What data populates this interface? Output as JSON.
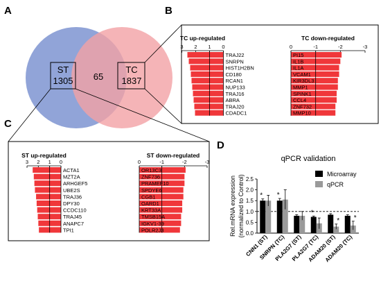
{
  "panels": {
    "A": {
      "letter": "A"
    },
    "B": {
      "letter": "B"
    },
    "C": {
      "letter": "C"
    },
    "D": {
      "letter": "D"
    }
  },
  "venn": {
    "st": {
      "label": "ST",
      "count": "1305",
      "color": "#8b9fd6"
    },
    "tc": {
      "label": "TC",
      "count": "1837",
      "color": "#f3a1a5"
    },
    "overlap": {
      "count": "65"
    }
  },
  "colors": {
    "up": "#f0373a",
    "down": "#29913a",
    "microarray": "#000000",
    "qpcr": "#9a9a9a"
  },
  "chart_data": [
    {
      "type": "bar",
      "orientation": "horizontal",
      "title": "TC up-regulated",
      "xlim": [
        3,
        0
      ],
      "xticks": [
        "3",
        "2",
        "1",
        "0"
      ],
      "reference_line": 1,
      "categories": [
        "TRAJ22",
        "SNRPN",
        "HIST1H2BN",
        "CD180",
        "RCAN1",
        "NUP133",
        "TRAJ16",
        "ABRA",
        "TRAJ20",
        "CDADC1"
      ],
      "values": [
        2.6,
        2.5,
        2.4,
        2.35,
        2.3,
        2.25,
        2.2,
        2.15,
        2.1,
        2.05
      ]
    },
    {
      "type": "bar",
      "orientation": "horizontal",
      "title": "TC down-regulated",
      "xlim": [
        0,
        -3
      ],
      "xticks": [
        "0",
        "-1",
        "-2",
        "-3"
      ],
      "reference_line": -1,
      "categories": [
        "PI15",
        "IL1B",
        "IL1A",
        "VCAM1",
        "KIR3DL3",
        "MMP1",
        "SPINK1",
        "CCL4",
        "ZNF732",
        "MMP10"
      ],
      "values": [
        -2.05,
        -2.0,
        -1.95,
        -1.95,
        -1.9,
        -1.9,
        -1.85,
        -1.85,
        -1.8,
        -1.8
      ]
    },
    {
      "type": "bar",
      "orientation": "horizontal",
      "title": "ST up-regulated",
      "xlim": [
        3,
        0
      ],
      "xticks": [
        "3",
        "2",
        "1",
        "0"
      ],
      "reference_line": 1,
      "categories": [
        "ACTA1",
        "MZT2A",
        "ARHGEF5",
        "UBE2S",
        "TRAJ36",
        "DPY30",
        "CCDC110",
        "TRAJ45",
        "ANAPC7",
        "TPI1"
      ],
      "values": [
        2.5,
        2.4,
        2.35,
        2.3,
        2.2,
        2.15,
        2.1,
        2.05,
        2.0,
        1.95
      ]
    },
    {
      "type": "bar",
      "orientation": "horizontal",
      "title": "ST down-regulated",
      "xlim": [
        0,
        -3
      ],
      "xticks": [
        "0",
        "-1",
        "-2",
        "-3"
      ],
      "reference_line": -1,
      "categories": [
        "OR13C3",
        "ZNF736",
        "PRAMEF10",
        "SPDYE6",
        "CGB1",
        "OARD1",
        "KRT33A",
        "TMSB15A",
        "IGKV1-39",
        "POLR2J3"
      ],
      "values": [
        -2.05,
        -2.0,
        -2.0,
        -1.95,
        -1.95,
        -1.9,
        -1.9,
        -1.85,
        -1.85,
        -1.8
      ]
    },
    {
      "type": "bar",
      "title": "qPCR validation",
      "ylabel": "Rel.mRNA expression",
      "ylabel2": "(normalized to Control)",
      "ylim": [
        0,
        2.5
      ],
      "yticks": [
        "0.0",
        "0.5",
        "1.0",
        "1.5",
        "2.0",
        "2.5"
      ],
      "reference_line": 1.0,
      "legend_position": "top-right",
      "categories": [
        "CNN1 (ST)",
        "SNRPN (TC)",
        "PLA2G7 (ST)",
        "PLA2G7 (TC)",
        "ADAM20 (ST)",
        "ADAM20 (TC)"
      ],
      "series": [
        {
          "name": "Microarray",
          "values": [
            1.5,
            1.5,
            0.8,
            0.75,
            0.85,
            0.8
          ],
          "errors": [
            0.08,
            0.1,
            0.05,
            0.04,
            0.05,
            0.05
          ]
        },
        {
          "name": "qPCR",
          "values": [
            1.5,
            1.55,
            0.8,
            0.45,
            0.3,
            0.35
          ],
          "errors": [
            0.25,
            0.45,
            0.2,
            0.25,
            0.12,
            0.2
          ]
        }
      ],
      "significance": [
        "*",
        "*",
        "",
        "*",
        "*",
        "*"
      ],
      "significance_positions": [
        {
          "series": 0,
          "index": 0
        },
        {
          "series": 0,
          "index": 1
        },
        {
          "series": 0,
          "index": 3
        },
        {
          "series": 1,
          "index": 4
        },
        {
          "series": 1,
          "index": 5
        }
      ]
    }
  ]
}
